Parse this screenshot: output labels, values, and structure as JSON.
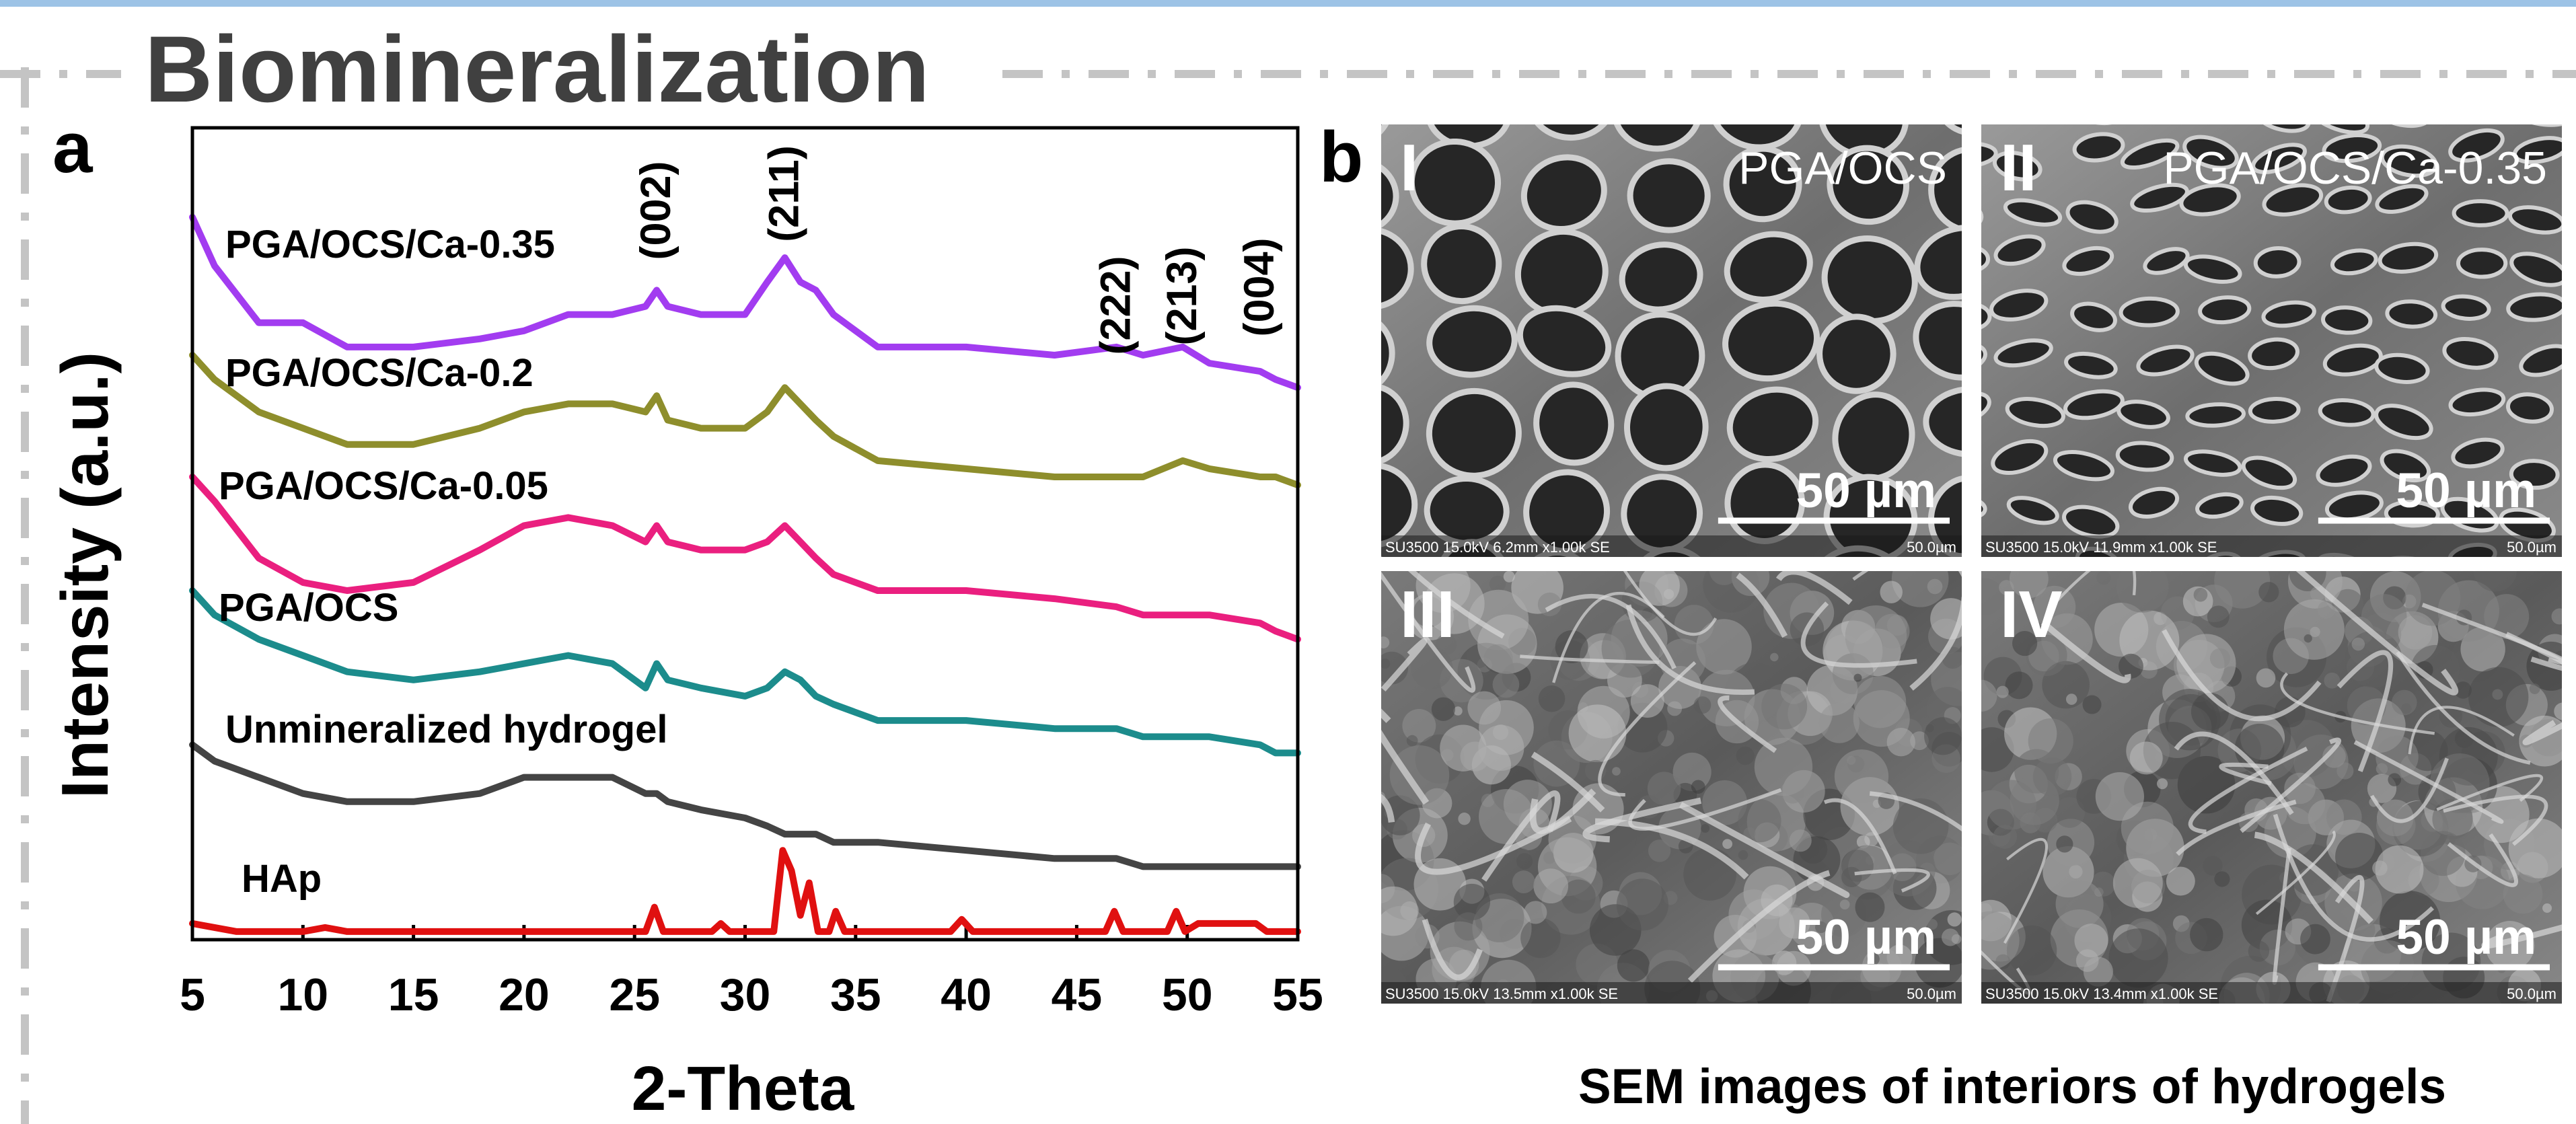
{
  "title": "Biomineralization",
  "panel_a_label": "a",
  "chart_data": {
    "type": "line",
    "y_label": "Intensity (a.u.)",
    "x_label": "2-Theta",
    "xlim": [
      5,
      55
    ],
    "xticks": [
      5,
      10,
      15,
      20,
      25,
      30,
      35,
      40,
      45,
      50,
      55
    ],
    "ylim": [
      0,
      100
    ],
    "x": [
      5,
      6,
      8,
      10,
      12,
      15,
      18,
      20,
      22,
      24,
      25.5,
      26,
      26.5,
      28,
      30,
      31,
      31.8,
      32.5,
      33.2,
      34,
      36,
      40,
      44,
      46.8,
      48,
      49.8,
      51,
      53.3,
      54,
      55
    ],
    "series": [
      {
        "name": "PGA/OCS/Ca-0.35",
        "color": "#a23cf0",
        "values": [
          89,
          83,
          76,
          76,
          73,
          73,
          74,
          75,
          77,
          77,
          78,
          80,
          78,
          77,
          77,
          81,
          84,
          81,
          80,
          77,
          73,
          73,
          72,
          73,
          72,
          73,
          71,
          70,
          69,
          68
        ]
      },
      {
        "name": "PGA/OCS/Ca-0.2",
        "color": "#8e8e2c",
        "values": [
          72,
          69,
          65,
          63,
          61,
          61,
          63,
          65,
          66,
          66,
          65,
          67,
          64,
          63,
          63,
          65,
          68,
          66,
          64,
          62,
          59,
          58,
          57,
          57,
          57,
          59,
          58,
          57,
          57,
          56
        ]
      },
      {
        "name": "PGA/OCS/Ca-0.05",
        "color": "#ea1f7f",
        "values": [
          57,
          54,
          47,
          44,
          43,
          44,
          48,
          51,
          52,
          51,
          49,
          51,
          49,
          48,
          48,
          49,
          51,
          49,
          47,
          45,
          43,
          43,
          42,
          41,
          40,
          40,
          40,
          39,
          38,
          37
        ]
      },
      {
        "name": "PGA/OCS",
        "color": "#1c8c8c",
        "values": [
          43,
          40,
          37,
          35,
          33,
          32,
          33,
          34,
          35,
          34,
          31,
          34,
          32,
          31,
          30,
          31,
          33,
          32,
          30,
          29,
          27,
          27,
          26,
          26,
          25,
          25,
          25,
          24,
          23,
          23
        ]
      },
      {
        "name": "Unmineralized hydrogel",
        "color": "#444444",
        "values": [
          24,
          22,
          20,
          18,
          17,
          17,
          18,
          20,
          20,
          20,
          18,
          18,
          17,
          16,
          15,
          14,
          13,
          13,
          13,
          12,
          12,
          11,
          10,
          10,
          9,
          9,
          9,
          9,
          9,
          9
        ]
      },
      {
        "name": "HAp",
        "color": "#e01010",
        "x": [
          5,
          7,
          10,
          11,
          12,
          20,
          25.5,
          25.9,
          26.3,
          28.5,
          28.9,
          29.3,
          31.3,
          31.7,
          32.1,
          32.5,
          32.9,
          33.3,
          33.8,
          34.1,
          34.5,
          39.3,
          39.8,
          40.3,
          46.3,
          46.7,
          47.1,
          49.1,
          49.5,
          49.9,
          50.5,
          51.3,
          52.1,
          53.1,
          53.6,
          55
        ],
        "values": [
          2,
          1,
          1,
          1.5,
          1,
          1,
          1,
          4,
          1,
          1,
          2,
          1,
          1,
          11,
          8.5,
          3,
          7,
          1,
          1,
          3.5,
          1,
          1,
          2.5,
          1,
          1,
          3.5,
          1,
          1,
          3.5,
          1,
          2,
          2,
          2,
          2,
          1,
          1
        ]
      }
    ],
    "annotations": [
      {
        "text": "(002)",
        "x": 26
      },
      {
        "text": "(211)",
        "x": 31.8
      },
      {
        "text": "(222)",
        "x": 46.8
      },
      {
        "text": "(213)",
        "x": 49.8
      },
      {
        "text": "(004)",
        "x": 53.3
      }
    ]
  },
  "panel_b": {
    "label": "b",
    "images": [
      {
        "numeral": "I",
        "sample": "PGA/OCS",
        "scale_bar": "50 µm",
        "info": "SU3500 15.0kV 6.2mm x1.00k SE",
        "info_scale": "50.0µm"
      },
      {
        "numeral": "II",
        "sample": "PGA/OCS/Ca-0.35",
        "scale_bar": "50 µm",
        "info": "SU3500 15.0kV 11.9mm x1.00k SE",
        "info_scale": "50.0µm"
      },
      {
        "numeral": "III",
        "scale_bar": "50 µm",
        "info": "SU3500 15.0kV 13.5mm x1.00k SE",
        "info_scale": "50.0µm"
      },
      {
        "numeral": "IV",
        "scale_bar": "50 µm",
        "info": "SU3500 15.0kV 13.4mm x1.00k SE",
        "info_scale": "50.0µm"
      }
    ],
    "caption": "SEM images of  interiors of hydrogels"
  }
}
